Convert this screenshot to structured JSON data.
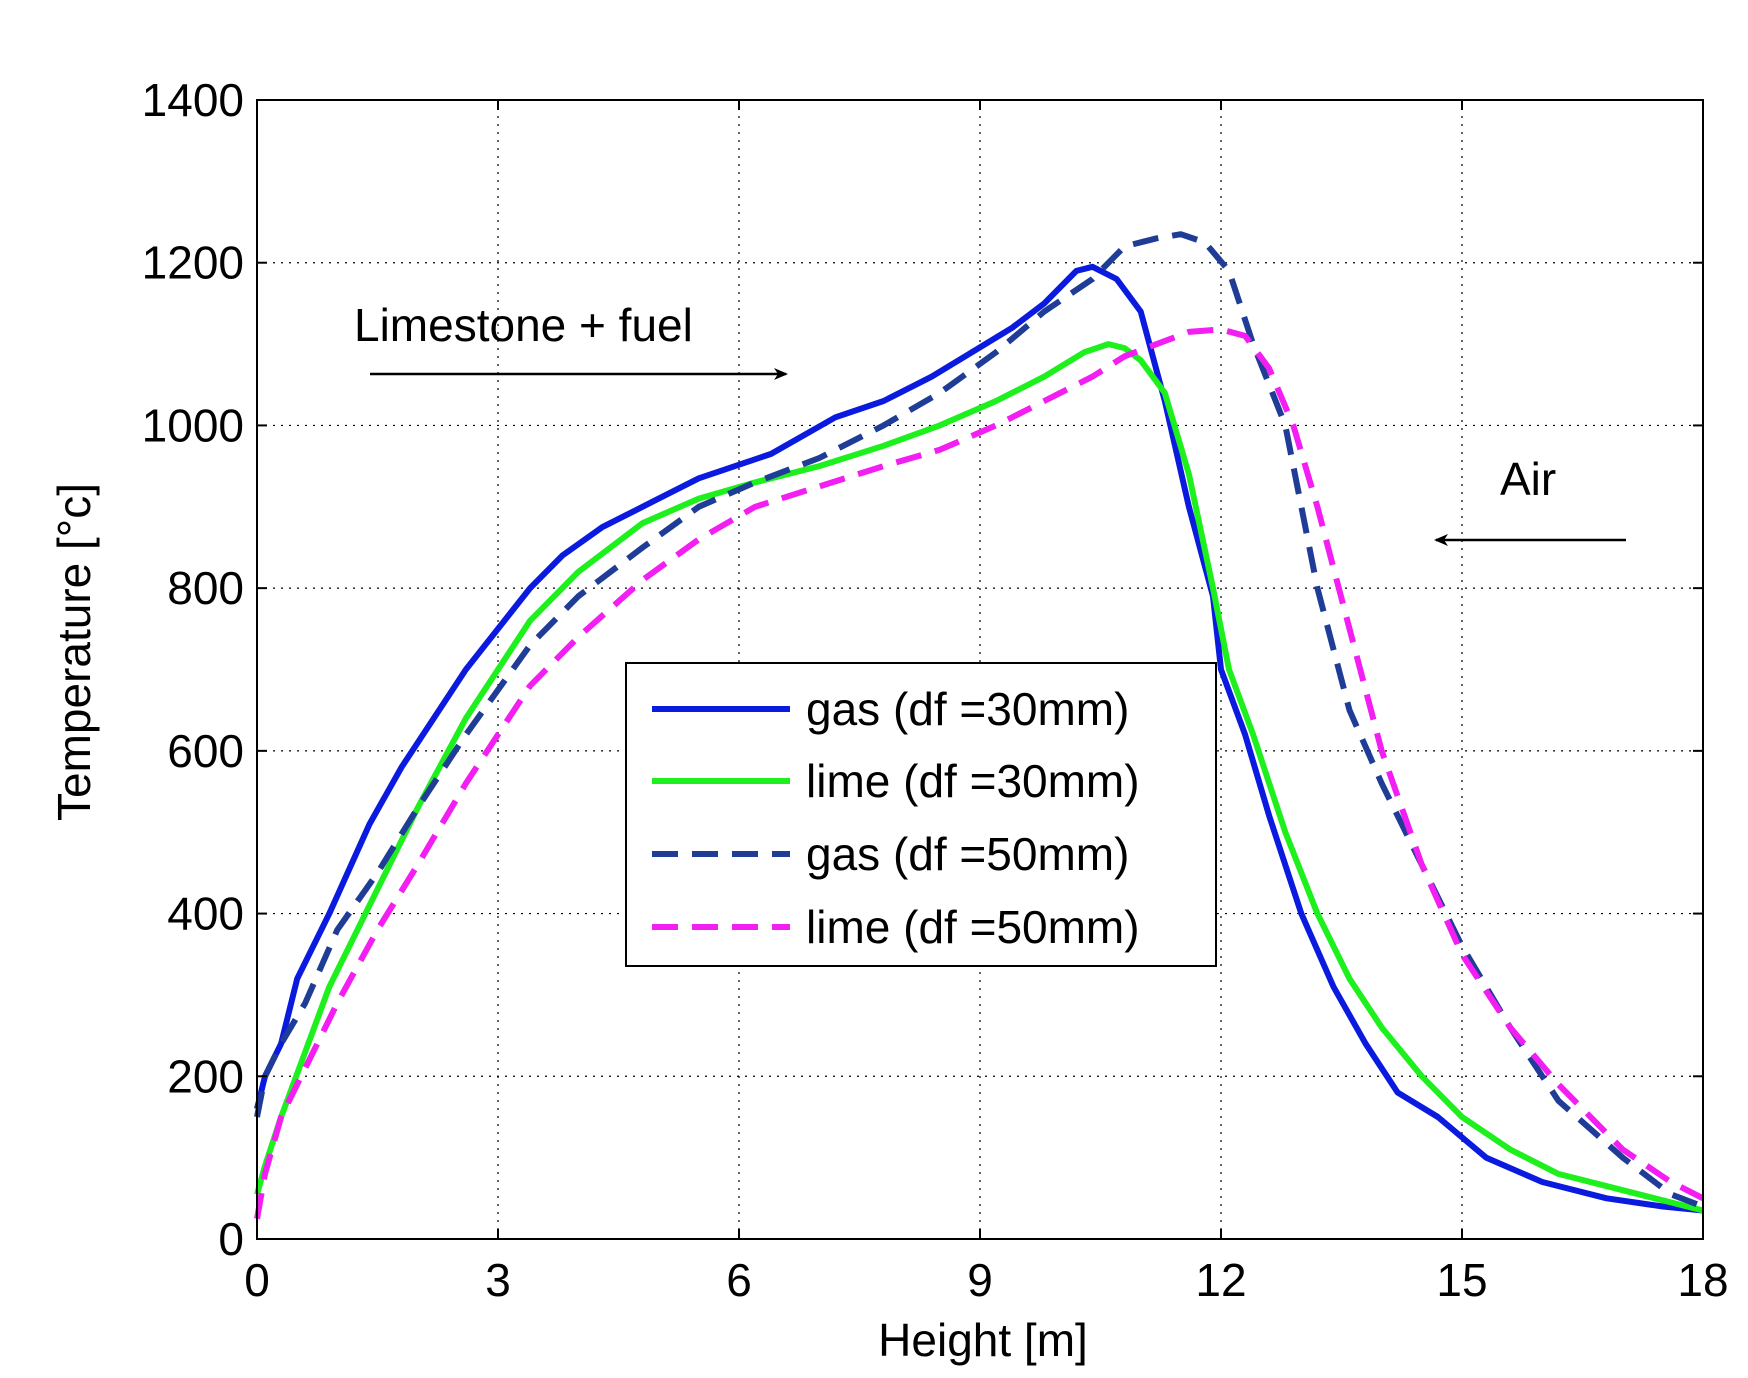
{
  "chart_data": {
    "type": "line",
    "xlabel": "Height [m]",
    "ylabel": "Temperature [°c]",
    "xlim": [
      0,
      18
    ],
    "ylim": [
      0,
      1400
    ],
    "xticks": [
      0,
      3,
      6,
      9,
      12,
      15,
      18
    ],
    "yticks": [
      0,
      200,
      400,
      600,
      800,
      1000,
      1200,
      1400
    ],
    "grid": true,
    "legend_position": "center",
    "series": [
      {
        "name": "gas (df =30mm)",
        "color": "#0a1adf",
        "dash": "solid",
        "x": [
          0,
          0.1,
          0.3,
          0.5,
          0.9,
          1.4,
          1.8,
          2.6,
          3.4,
          3.8,
          4.3,
          5.0,
          5.5,
          6.4,
          7.2,
          7.8,
          8.4,
          8.9,
          9.4,
          9.8,
          10.2,
          10.4,
          10.7,
          11.0,
          11.3,
          11.6,
          11.9,
          12.0,
          12.3,
          12.6,
          13.0,
          13.4,
          13.8,
          14.2,
          14.7,
          15.3,
          16.0,
          16.8,
          17.5,
          18.0
        ],
        "y": [
          160,
          200,
          240,
          320,
          400,
          510,
          580,
          700,
          800,
          840,
          875,
          910,
          935,
          965,
          1010,
          1030,
          1060,
          1090,
          1120,
          1150,
          1190,
          1195,
          1180,
          1140,
          1030,
          900,
          790,
          700,
          620,
          520,
          400,
          310,
          240,
          180,
          150,
          100,
          70,
          50,
          40,
          35
        ]
      },
      {
        "name": "lime (df =30mm)",
        "color": "#1ef01e",
        "dash": "solid",
        "x": [
          0,
          0.1,
          0.3,
          0.6,
          0.9,
          1.4,
          2.0,
          2.6,
          3.4,
          4.0,
          4.8,
          5.5,
          6.2,
          7.0,
          7.8,
          8.5,
          9.2,
          9.8,
          10.3,
          10.6,
          10.8,
          11.0,
          11.3,
          11.6,
          11.9,
          12.1,
          12.4,
          12.8,
          13.2,
          13.6,
          14.0,
          14.5,
          15.0,
          15.6,
          16.2,
          17.0,
          17.6,
          18.0
        ],
        "y": [
          55,
          90,
          150,
          230,
          310,
          410,
          530,
          640,
          760,
          820,
          880,
          910,
          930,
          950,
          975,
          1000,
          1030,
          1060,
          1090,
          1100,
          1095,
          1080,
          1040,
          940,
          800,
          700,
          620,
          500,
          400,
          320,
          260,
          200,
          150,
          110,
          80,
          60,
          45,
          35
        ]
      },
      {
        "name": "gas (df =50mm)",
        "color": "#1f3d96",
        "dash": "dashed",
        "x": [
          0,
          0.1,
          0.3,
          0.6,
          1.0,
          1.5,
          2.0,
          2.6,
          3.4,
          4.0,
          4.8,
          5.5,
          6.2,
          7.0,
          7.8,
          8.5,
          9.2,
          9.8,
          10.4,
          10.8,
          11.2,
          11.5,
          11.8,
          12.1,
          12.4,
          12.8,
          13.2,
          13.6,
          14.0,
          14.5,
          15.0,
          15.6,
          16.2,
          17.0,
          17.6,
          18.0
        ],
        "y": [
          150,
          200,
          240,
          290,
          380,
          450,
          530,
          620,
          730,
          790,
          850,
          900,
          930,
          960,
          1000,
          1040,
          1090,
          1140,
          1180,
          1220,
          1230,
          1235,
          1225,
          1190,
          1100,
          1000,
          800,
          650,
          560,
          460,
          360,
          260,
          170,
          100,
          55,
          40
        ]
      },
      {
        "name": "lime (df =50mm)",
        "color": "#f21ef2",
        "dash": "dashed",
        "x": [
          0,
          0.1,
          0.3,
          0.6,
          1.0,
          1.5,
          2.0,
          2.6,
          3.4,
          4.0,
          4.8,
          5.5,
          6.2,
          7.0,
          7.8,
          8.5,
          9.2,
          9.8,
          10.4,
          10.8,
          11.2,
          11.6,
          12.0,
          12.3,
          12.6,
          12.9,
          13.2,
          13.6,
          14.0,
          14.5,
          15.0,
          15.6,
          16.2,
          17.0,
          17.6,
          18.0
        ],
        "y": [
          25,
          80,
          150,
          210,
          290,
          380,
          460,
          560,
          680,
          740,
          810,
          860,
          900,
          925,
          950,
          970,
          1000,
          1030,
          1060,
          1085,
          1100,
          1115,
          1118,
          1110,
          1070,
          1000,
          900,
          750,
          600,
          460,
          350,
          260,
          190,
          110,
          70,
          50
        ]
      }
    ],
    "annotations": [
      {
        "text": "Limestone + fuel",
        "arrow": "right"
      },
      {
        "text": "Air",
        "arrow": "left"
      }
    ]
  }
}
